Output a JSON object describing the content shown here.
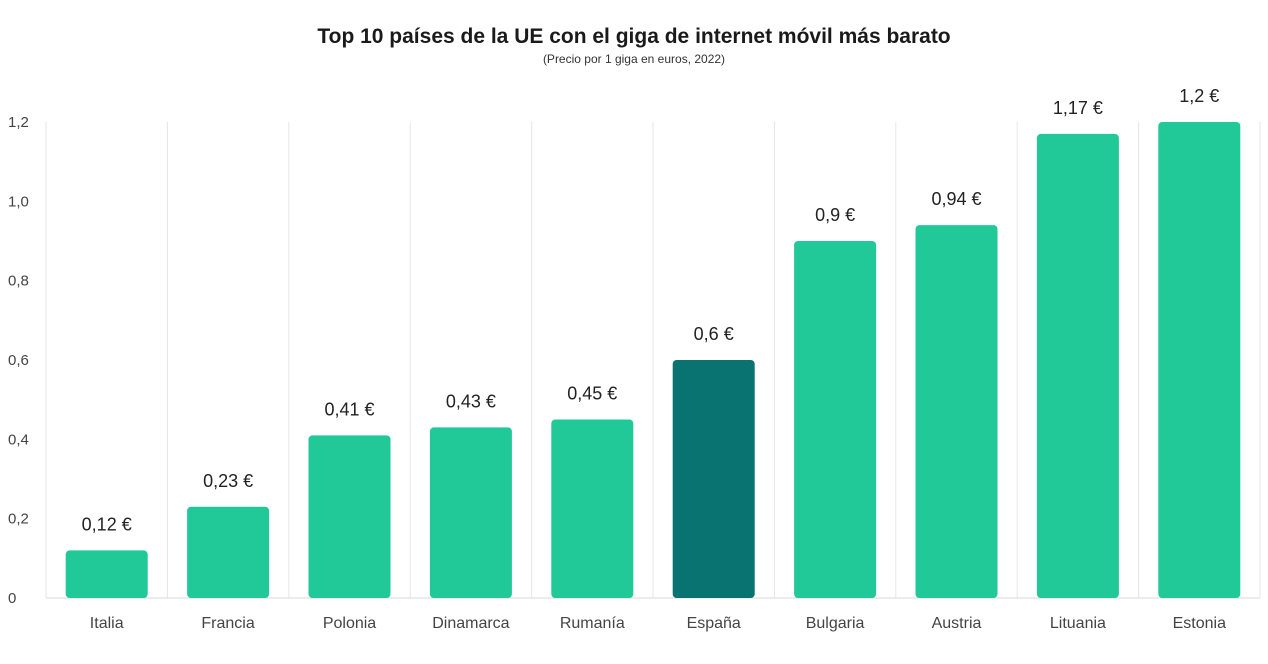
{
  "chart_data": {
    "type": "bar",
    "title": "Top 10 países de la UE con el giga de internet móvil más barato",
    "subtitle": "(Precio por 1 giga en euros, 2022)",
    "categories": [
      "Italia",
      "Francia",
      "Polonia",
      "Dinamarca",
      "Rumanía",
      "España",
      "Bulgaria",
      "Austria",
      "Lituania",
      "Estonia"
    ],
    "values": [
      0.12,
      0.23,
      0.41,
      0.43,
      0.45,
      0.6,
      0.9,
      0.94,
      1.17,
      1.2
    ],
    "data_labels": [
      "0,12 €",
      "0,23 €",
      "0,41 €",
      "0,43 €",
      "0,45 €",
      "0,6 €",
      "0,9 €",
      "0,94 €",
      "1,17 €",
      "1,2 €"
    ],
    "yticks": [
      0,
      0.2,
      0.4,
      0.6,
      0.8,
      1.0,
      1.2
    ],
    "ytick_labels": [
      "0",
      "0,2",
      "0,4",
      "0,6",
      "0,8",
      "1,0",
      "1,2"
    ],
    "ylim": [
      0,
      1.2
    ],
    "xlabel": "",
    "ylabel": "",
    "grid": "vertical",
    "legend": "none",
    "colors": {
      "bar": "#22c998",
      "highlight": "#087370",
      "grid": "#e6e6e6"
    },
    "highlight_category": "España"
  }
}
